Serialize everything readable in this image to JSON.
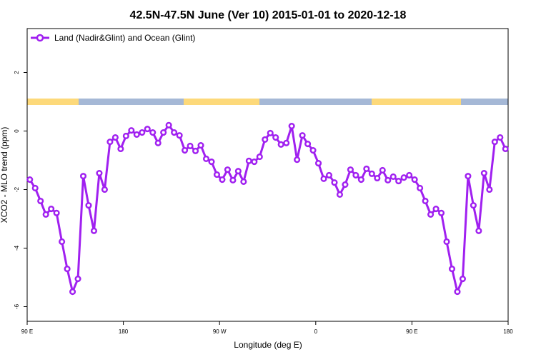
{
  "chart_data": {
    "type": "line",
    "title": "42.5N-47.5N June (Ver 10)   2015-01-01 to 2020-12-18",
    "x_label": "Longitude (deg E)",
    "y_label": "XCO2 - MLO trend (ppm)",
    "x": [
      92.5,
      97.5,
      102.5,
      107.5,
      112.5,
      117.5,
      122.5,
      127.5,
      132.5,
      137.5,
      142.5,
      147.5,
      152.5,
      157.5,
      162.5,
      167.5,
      172.5,
      177.5,
      182.5,
      187.5,
      192.5,
      197.5,
      202.5,
      207.5,
      212.5,
      217.5,
      222.5,
      227.5,
      232.5,
      237.5,
      242.5,
      247.5,
      252.5,
      257.5,
      262.5,
      267.5,
      272.5,
      277.5,
      282.5,
      287.5,
      292.5,
      297.5,
      302.5,
      307.5,
      312.5,
      317.5,
      322.5,
      327.5,
      332.5,
      337.5,
      342.5,
      347.5,
      352.5,
      357.5,
      362.5,
      367.5,
      372.5,
      377.5,
      382.5,
      387.5,
      392.5,
      397.5,
      402.5,
      407.5,
      412.5,
      417.5,
      422.5,
      427.5,
      432.5,
      437.5,
      442.5,
      447.5,
      452.5,
      457.5,
      462.5,
      467.5,
      472.5,
      477.5,
      482.5,
      487.5,
      492.5,
      497.5,
      502.5,
      507.5,
      512.5,
      517.5,
      522.5,
      527.5,
      532.5,
      537.5
    ],
    "series": [
      {
        "name": "Land (Nadir&Glint) and Ocean (Glint)",
        "color": "#a020f0",
        "values": [
          -1.66,
          -1.95,
          -2.39,
          -2.85,
          -2.66,
          -2.8,
          -3.78,
          -4.71,
          -5.49,
          -5.05,
          -1.54,
          -2.54,
          -3.41,
          -1.44,
          -2.0,
          -0.37,
          -0.22,
          -0.61,
          -0.17,
          0.02,
          -0.12,
          -0.05,
          0.07,
          -0.05,
          -0.41,
          -0.05,
          0.2,
          -0.05,
          -0.15,
          -0.66,
          -0.51,
          -0.68,
          -0.49,
          -0.95,
          -1.05,
          -1.49,
          -1.66,
          -1.32,
          -1.68,
          -1.37,
          -1.73,
          -1.02,
          -1.05,
          -0.88,
          -0.29,
          -0.07,
          -0.22,
          -0.46,
          -0.41,
          0.17,
          -0.98,
          -0.15,
          -0.44,
          -0.66,
          -1.1,
          -1.63,
          -1.51,
          -1.76,
          -2.17,
          -1.83,
          -1.32,
          -1.51,
          -1.66,
          -1.29,
          -1.46,
          -1.61,
          -1.34,
          -1.68,
          -1.56,
          -1.71,
          -1.59,
          -1.51,
          -1.66,
          -1.95,
          -2.39,
          -2.85,
          -2.66,
          -2.8,
          -3.78,
          -4.71,
          -5.49,
          -5.05,
          -1.54,
          -2.54,
          -3.41,
          -1.44,
          -2.0,
          -0.37,
          -0.22,
          -0.61
        ]
      }
    ],
    "xlim": [
      90,
      540
    ],
    "xticks": [
      {
        "value": 90,
        "label": "90 E"
      },
      180,
      {
        "value": 270,
        "label": "90 W"
      },
      {
        "value": 360,
        "label": "0"
      },
      {
        "value": 450,
        "label": "90 E"
      },
      {
        "value": 540,
        "label": "180"
      }
    ],
    "ylim": [
      -6.5,
      3.5
    ],
    "yticks": [
      -6,
      -4,
      -2,
      0,
      2
    ],
    "legend_position": "top-left"
  }
}
